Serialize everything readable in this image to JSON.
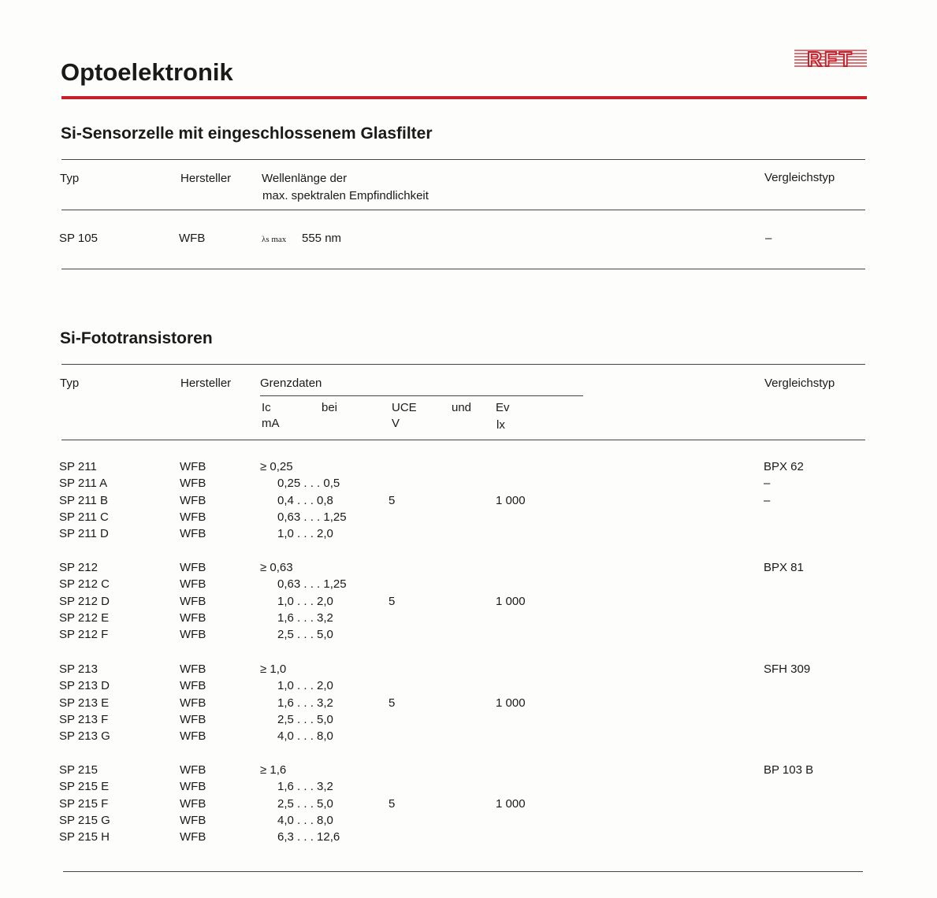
{
  "page_title": "Optoelektronik",
  "logo_text": "RFT",
  "logo_color": "#c8202a",
  "section1": {
    "title": "Si-Sensorzelle mit eingeschlossenem Glasfilter",
    "headers": {
      "typ": "Typ",
      "hersteller": "Hersteller",
      "wellen_1": "Wellenlänge der",
      "wellen_2": "max. spektralen Empfindlichkeit",
      "vergleich": "Vergleichstyp"
    },
    "row": {
      "typ": "SP 105",
      "hersteller": "WFB",
      "lambda": "λs max",
      "value": "555 nm",
      "vergleich": "–"
    }
  },
  "section2": {
    "title": "Si-Fototransistoren",
    "headers": {
      "typ": "Typ",
      "hersteller": "Hersteller",
      "grenzdaten": "Grenzdaten",
      "ic": "Ic",
      "ic_unit": "mA",
      "bei": "bei",
      "uce": "UCE",
      "uce_unit": "V",
      "und": "und",
      "ev": "Ev",
      "ev_unit": "lx",
      "vergleich": "Vergleichstyp"
    },
    "groups": [
      {
        "uce": "5",
        "ev": "1 000",
        "rows": [
          {
            "typ": "SP 211",
            "hersteller": "WFB",
            "ic": "≥ 0,25",
            "vergleich": "BPX 62"
          },
          {
            "typ": "SP 211 A",
            "hersteller": "WFB",
            "ic": "0,25 . . . 0,5",
            "vergleich": "–"
          },
          {
            "typ": "SP 211 B",
            "hersteller": "WFB",
            "ic": "0,4  . . . 0,8",
            "vergleich": "–"
          },
          {
            "typ": "SP 211 C",
            "hersteller": "WFB",
            "ic": "0,63 . . . 1,25",
            "vergleich": ""
          },
          {
            "typ": "SP 211 D",
            "hersteller": "WFB",
            "ic": "1,0  . . . 2,0",
            "vergleich": ""
          }
        ]
      },
      {
        "uce": "5",
        "ev": "1 000",
        "rows": [
          {
            "typ": "SP 212",
            "hersteller": "WFB",
            "ic": "≥ 0,63",
            "vergleich": "BPX 81"
          },
          {
            "typ": "SP 212 C",
            "hersteller": "WFB",
            "ic": "0,63 . . . 1,25",
            "vergleich": ""
          },
          {
            "typ": "SP 212 D",
            "hersteller": "WFB",
            "ic": "1,0  . . . 2,0",
            "vergleich": ""
          },
          {
            "typ": "SP 212 E",
            "hersteller": "WFB",
            "ic": "1,6  . . . 3,2",
            "vergleich": ""
          },
          {
            "typ": "SP 212 F",
            "hersteller": "WFB",
            "ic": "2,5  . . . 5,0",
            "vergleich": ""
          }
        ]
      },
      {
        "uce": "5",
        "ev": "1 000",
        "rows": [
          {
            "typ": "SP 213",
            "hersteller": "WFB",
            "ic": "≥ 1,0",
            "vergleich": "SFH 309"
          },
          {
            "typ": "SP 213 D",
            "hersteller": "WFB",
            "ic": "1,0  . . . 2,0",
            "vergleich": ""
          },
          {
            "typ": "SP 213 E",
            "hersteller": "WFB",
            "ic": "1,6  . . . 3,2",
            "vergleich": ""
          },
          {
            "typ": "SP 213 F",
            "hersteller": "WFB",
            "ic": "2,5  . . . 5,0",
            "vergleich": ""
          },
          {
            "typ": "SP 213 G",
            "hersteller": "WFB",
            "ic": "4,0  . . . 8,0",
            "vergleich": ""
          }
        ]
      },
      {
        "uce": "5",
        "ev": "1 000",
        "rows": [
          {
            "typ": "SP 215",
            "hersteller": "WFB",
            "ic": "≥ 1,6",
            "vergleich": "BP 103 B"
          },
          {
            "typ": "SP 215 E",
            "hersteller": "WFB",
            "ic": "1,6  . . . 3,2",
            "vergleich": ""
          },
          {
            "typ": "SP 215 F",
            "hersteller": "WFB",
            "ic": "2,5  . . . 5,0",
            "vergleich": ""
          },
          {
            "typ": "SP 215 G",
            "hersteller": "WFB",
            "ic": "4,0  . . . 8,0",
            "vergleich": ""
          },
          {
            "typ": "SP 215 H",
            "hersteller": "WFB",
            "ic": "6,3  . . . 12,6",
            "vergleich": ""
          }
        ]
      }
    ]
  }
}
